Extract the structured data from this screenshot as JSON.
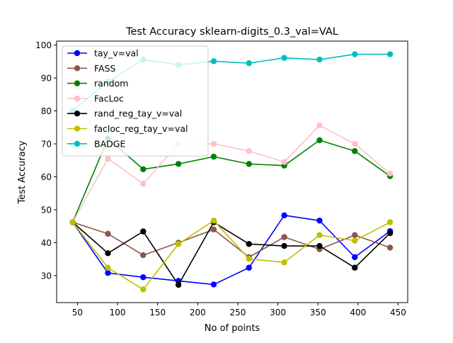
{
  "chart_data": {
    "type": "line",
    "title": "Test Accuracy sklearn-digits_0.3_val=VAL",
    "xlabel": "No of points",
    "ylabel": "Test Accuracy",
    "xlim": [
      24,
      462
    ],
    "ylim": [
      21.8,
      101.2
    ],
    "xticks": [
      50,
      100,
      150,
      200,
      250,
      300,
      350,
      400,
      450
    ],
    "yticks": [
      30,
      40,
      50,
      60,
      70,
      80,
      90,
      100
    ],
    "grid": false,
    "legend_position": "upper-left",
    "x": [
      44,
      88,
      132,
      176,
      220,
      264,
      308,
      352,
      396,
      440
    ],
    "series": [
      {
        "name": "tay_v=val",
        "color": "#0000ff",
        "values": [
          46.2,
          30.8,
          29.5,
          28.4,
          27.3,
          32.4,
          48.3,
          46.7,
          35.6,
          43.5
        ]
      },
      {
        "name": "FASS",
        "color": "#8c564b",
        "values": [
          46.2,
          42.7,
          36.2,
          40.0,
          44.0,
          35.6,
          41.7,
          38.0,
          42.3,
          38.5
        ]
      },
      {
        "name": "random",
        "color": "#008000",
        "values": [
          46.2,
          71.6,
          62.3,
          63.9,
          66.1,
          63.9,
          63.4,
          71.1,
          67.8,
          60.2
        ]
      },
      {
        "name": "FacLoc",
        "color": "#ffc0cb",
        "values": [
          46.2,
          65.5,
          57.9,
          70.0,
          70.0,
          67.8,
          64.5,
          75.6,
          70.0,
          61.0
        ]
      },
      {
        "name": "rand_reg_tay_v=val",
        "color": "#000000",
        "values": [
          46.2,
          36.8,
          43.4,
          27.2,
          46.2,
          39.6,
          39.0,
          39.0,
          32.4,
          42.9
        ]
      },
      {
        "name": "facloc_reg_tay_v=val",
        "color": "#bfbf00",
        "values": [
          46.2,
          32.4,
          25.8,
          39.6,
          46.7,
          35.1,
          34.0,
          42.3,
          40.6,
          46.2
        ]
      },
      {
        "name": "BADGE",
        "color": "#00bfbf",
        "values": [
          80.0,
          88.9,
          95.6,
          94.0,
          95.1,
          94.5,
          96.1,
          95.6,
          97.2,
          97.2
        ]
      }
    ]
  }
}
